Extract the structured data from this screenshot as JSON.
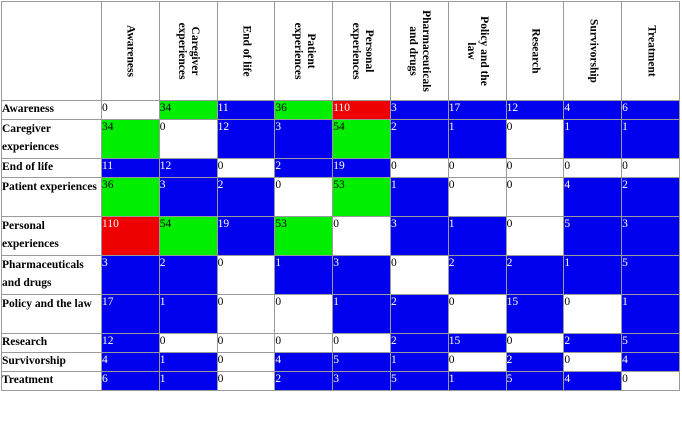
{
  "chart_data": {
    "type": "heatmap",
    "title": "",
    "xlabel": "",
    "ylabel": "",
    "columns": [
      "Awareness",
      "Caregiver experiences",
      "End of life",
      "Patient experiences",
      "Personal experiences",
      "Pharmaceuticals and drugs",
      "Policy and the law",
      "Research",
      "Survivorship",
      "Treatment"
    ],
    "rows": [
      "Awareness",
      "Caregiver experiences",
      "End of life",
      "Patient experiences",
      "Personal experiences",
      "Pharmaceuticals and drugs",
      "Policy and the law",
      "Research",
      "Survivorship",
      "Treatment"
    ],
    "values": [
      [
        0,
        34,
        11,
        36,
        110,
        3,
        17,
        12,
        4,
        6
      ],
      [
        34,
        0,
        12,
        3,
        54,
        2,
        1,
        0,
        1,
        1
      ],
      [
        11,
        12,
        0,
        2,
        19,
        0,
        0,
        0,
        0,
        0
      ],
      [
        36,
        3,
        2,
        0,
        53,
        1,
        0,
        0,
        4,
        2
      ],
      [
        110,
        54,
        19,
        53,
        0,
        3,
        1,
        0,
        5,
        3
      ],
      [
        3,
        2,
        0,
        1,
        3,
        0,
        2,
        2,
        1,
        5
      ],
      [
        17,
        1,
        0,
        0,
        1,
        2,
        0,
        15,
        0,
        1
      ],
      [
        12,
        0,
        0,
        0,
        0,
        2,
        15,
        0,
        2,
        5
      ],
      [
        4,
        1,
        0,
        4,
        5,
        1,
        0,
        2,
        0,
        4
      ],
      [
        6,
        1,
        0,
        2,
        3,
        5,
        1,
        5,
        4,
        0
      ]
    ],
    "fills": [
      [
        "white",
        "green",
        "blue",
        "green",
        "red",
        "blue",
        "blue",
        "blue",
        "blue",
        "blue"
      ],
      [
        "green",
        "white",
        "blue",
        "blue",
        "green",
        "blue",
        "blue",
        "white",
        "blue",
        "blue"
      ],
      [
        "blue",
        "blue",
        "white",
        "blue",
        "blue",
        "white",
        "white",
        "white",
        "white",
        "white"
      ],
      [
        "green",
        "blue",
        "blue",
        "white",
        "green",
        "blue",
        "white",
        "white",
        "blue",
        "blue"
      ],
      [
        "red",
        "green",
        "blue",
        "green",
        "white",
        "blue",
        "blue",
        "white",
        "blue",
        "blue"
      ],
      [
        "blue",
        "blue",
        "white",
        "blue",
        "blue",
        "white",
        "blue",
        "blue",
        "blue",
        "blue"
      ],
      [
        "blue",
        "blue",
        "white",
        "white",
        "blue",
        "blue",
        "white",
        "blue",
        "white",
        "blue"
      ],
      [
        "blue",
        "white",
        "white",
        "white",
        "white",
        "blue",
        "blue",
        "white",
        "blue",
        "blue"
      ],
      [
        "blue",
        "blue",
        "white",
        "blue",
        "blue",
        "blue",
        "white",
        "blue",
        "white",
        "blue"
      ],
      [
        "blue",
        "blue",
        "white",
        "blue",
        "blue",
        "blue",
        "blue",
        "blue",
        "blue",
        "white"
      ]
    ],
    "colors": {
      "white": "#ffffff",
      "blue": "#0000ee",
      "green": "#00ee00",
      "red": "#ee0000"
    },
    "grid": true
  }
}
